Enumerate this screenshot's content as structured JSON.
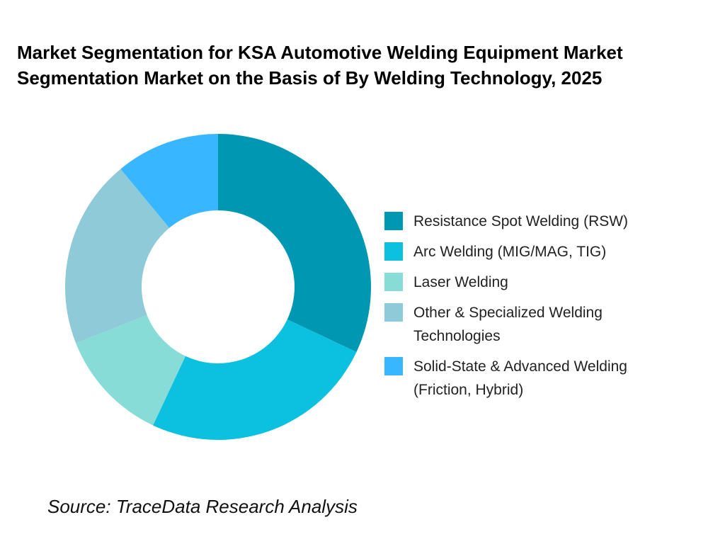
{
  "chart_data": {
    "type": "donut",
    "title": "Market Segmentation for KSA Automotive Welding Equipment Market Segmentation Market on the Basis of By Welding Technology, 2025",
    "categories": [
      "Resistance Spot Welding (RSW)",
      "Arc Welding (MIG/MAG, TIG)",
      "Laser Welding",
      "Other & Specialized Welding Technologies",
      "Solid-State & Advanced Welding (Friction, Hybrid)"
    ],
    "values": [
      32,
      25,
      12,
      20,
      11
    ],
    "colors": [
      "#0097b2",
      "#0cc0df",
      "#87dcd8",
      "#8ecad8",
      "#38b6ff"
    ],
    "legend": "right",
    "source": "Source: TraceData Research Analysis"
  }
}
